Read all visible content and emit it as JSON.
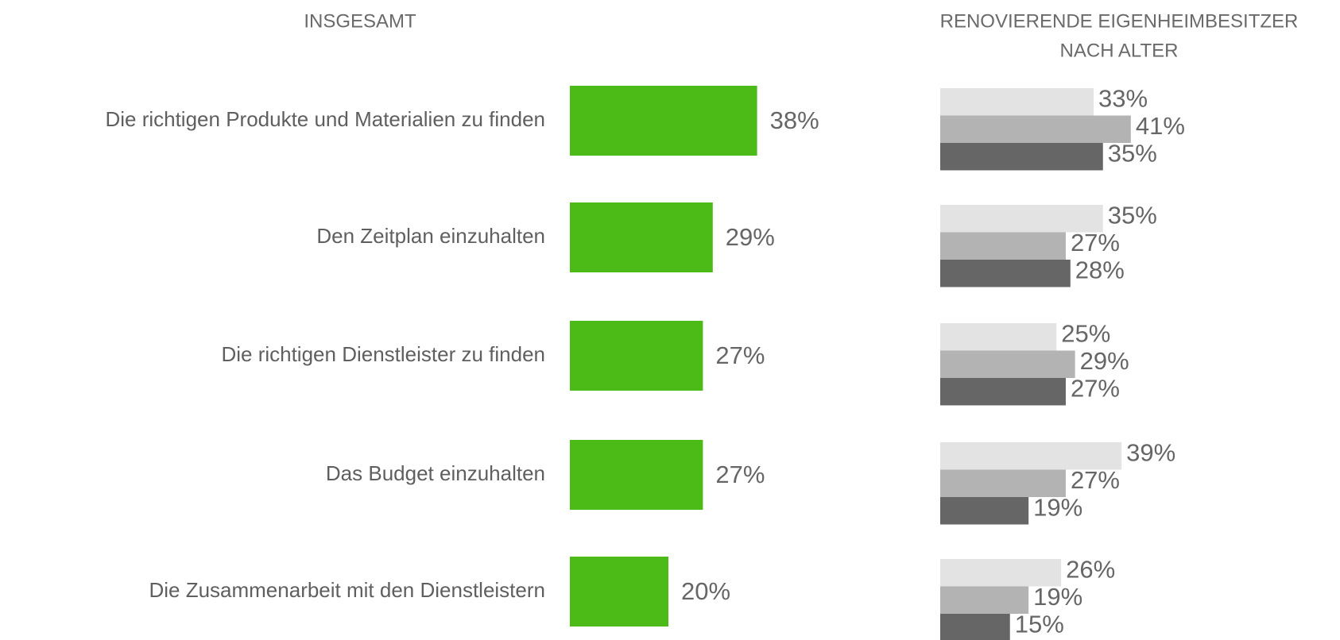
{
  "chart_data": [
    {
      "type": "bar",
      "orientation": "horizontal",
      "title": "INSGESAMT",
      "categories": [
        "Die richtigen Produkte und Materialien zu finden",
        "Den Zeitplan einzuhalten",
        "Die richtigen Dienstleister zu finden",
        "Das Budget einzuhalten",
        "Die Zusammenarbeit mit den Dienstleistern"
      ],
      "values": [
        38,
        29,
        27,
        27,
        20
      ],
      "value_labels": [
        "38%",
        "29%",
        "27%",
        "27%",
        "20%"
      ],
      "color": "#4dbb17"
    },
    {
      "type": "grouped-bar",
      "orientation": "horizontal",
      "title": [
        "RENOVIERENDE EIGENHEIMBESITZER",
        "NACH ALTER"
      ],
      "series": [
        {
          "color": "#e3e3e3",
          "values": [
            33,
            35,
            25,
            39,
            26
          ],
          "value_labels": [
            "33%",
            "35%",
            "25%",
            "39%",
            "26%"
          ]
        },
        {
          "color": "#b3b3b3",
          "values": [
            41,
            27,
            29,
            27,
            19
          ],
          "value_labels": [
            "41%",
            "27%",
            "29%",
            "27%",
            "19%"
          ]
        },
        {
          "color": "#666666",
          "values": [
            35,
            28,
            27,
            19,
            15
          ],
          "value_labels": [
            "35%",
            "28%",
            "27%",
            "19%",
            "15%"
          ]
        }
      ]
    }
  ]
}
